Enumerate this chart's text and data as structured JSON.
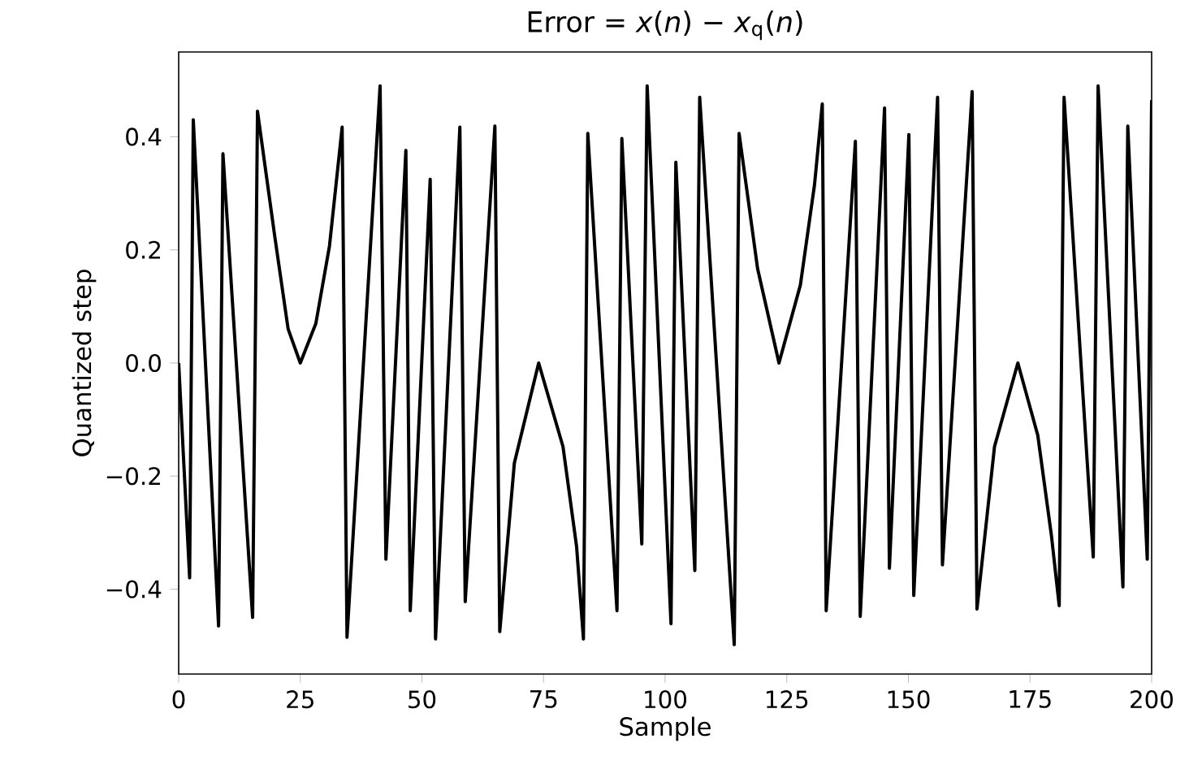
{
  "chart_data": {
    "type": "line",
    "title": "Error = *x*(*n*) − *x*$_{q}$(*n*)",
    "xlabel": "Sample",
    "ylabel": "Quantized step",
    "xlim": [
      0,
      200
    ],
    "ylim": [
      -0.55,
      0.55
    ],
    "xticks": [
      0,
      25,
      50,
      75,
      100,
      125,
      150,
      175,
      200
    ],
    "yticks": [
      {
        "value": -0.4,
        "label": "−0.4"
      },
      {
        "value": -0.2,
        "label": "−0.2"
      },
      {
        "value": 0,
        "label": "0.0"
      },
      0.2,
      0.4
    ],
    "grid": false,
    "series": [
      {
        "color": "#000000",
        "x": [
          0,
          2.25,
          3.0,
          8.2,
          9.1,
          15.2,
          16.2,
          19.7,
          22.5,
          25,
          28.2,
          31,
          33.6,
          34.6,
          41.4,
          42.6,
          46.7,
          47.6,
          51.7,
          52.8,
          57.8,
          58.9,
          65.0,
          66.0,
          69,
          74,
          79,
          81.8,
          83.2,
          84.1,
          90.1,
          91.1,
          95.2,
          96.3,
          101.2,
          102.2,
          106.1,
          107.1,
          114.2,
          115.2,
          119,
          123.4,
          127.8,
          130.7,
          132.3,
          133.1,
          139.1,
          140.1,
          145.1,
          146.1,
          150.1,
          151.1,
          156.0,
          157.0,
          163.1,
          164.1,
          167.7,
          172.5,
          176.6,
          179.4,
          181,
          182,
          188,
          189,
          194.1,
          195.1,
          199.1,
          200
        ],
        "values": [
          0.0,
          -0.38,
          0.43,
          -0.465,
          0.37,
          -0.45,
          0.445,
          0.227,
          0.06,
          0.0,
          0.07,
          0.207,
          0.417,
          -0.485,
          0.49,
          -0.347,
          0.376,
          -0.438,
          0.325,
          -0.488,
          0.417,
          -0.422,
          0.419,
          -0.475,
          -0.177,
          0.0,
          -0.148,
          -0.325,
          -0.488,
          0.406,
          -0.438,
          0.397,
          -0.32,
          0.49,
          -0.461,
          0.355,
          -0.367,
          0.47,
          -0.498,
          0.406,
          0.167,
          0.0,
          0.138,
          0.315,
          0.458,
          -0.438,
          0.392,
          -0.448,
          0.451,
          -0.363,
          0.404,
          -0.411,
          0.47,
          -0.357,
          0.48,
          -0.435,
          -0.148,
          0.0,
          -0.128,
          -0.305,
          -0.429,
          0.47,
          -0.343,
          0.49,
          -0.396,
          0.419,
          -0.347,
          0.465
        ]
      }
    ]
  }
}
